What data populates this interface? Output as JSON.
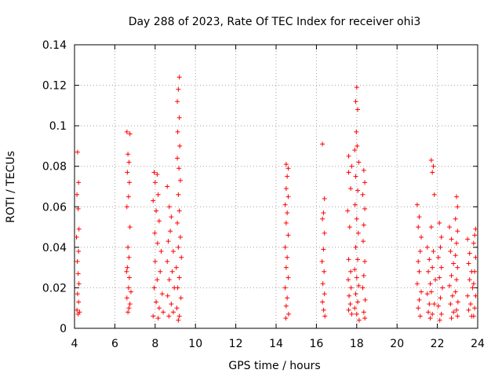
{
  "chart_data": {
    "type": "scatter",
    "title": "Day 288 of 2023, Rate Of TEC Index for receiver ohi3",
    "xlabel": "GPS time / hours",
    "ylabel": "ROTI / TECUs",
    "xlim": [
      4,
      24
    ],
    "ylim": [
      0,
      0.14
    ],
    "x_ticks": [
      "4",
      "6",
      "8",
      "10",
      "12",
      "14",
      "16",
      "18",
      "20",
      "22",
      "24"
    ],
    "y_ticks": [
      "0",
      "0.02",
      "0.04",
      "0.06",
      "0.08",
      "0.1",
      "0.12",
      "0.14"
    ],
    "grid": true,
    "marker": "+",
    "marker_color": "#ff0000",
    "series": [
      {
        "values": [
          [
            4.15,
            0.087
          ],
          [
            4.2,
            0.072
          ],
          [
            4.12,
            0.066
          ],
          [
            4.18,
            0.059
          ],
          [
            4.22,
            0.049
          ],
          [
            4.1,
            0.045
          ],
          [
            4.2,
            0.038
          ],
          [
            4.14,
            0.033
          ],
          [
            4.18,
            0.027
          ],
          [
            4.22,
            0.022
          ],
          [
            4.15,
            0.017
          ],
          [
            4.2,
            0.013
          ],
          [
            4.12,
            0.009
          ],
          [
            4.18,
            0.007
          ],
          [
            4.25,
            0.008
          ],
          [
            6.6,
            0.097
          ],
          [
            6.75,
            0.096
          ],
          [
            6.65,
            0.086
          ],
          [
            6.7,
            0.082
          ],
          [
            6.62,
            0.077
          ],
          [
            6.72,
            0.072
          ],
          [
            6.68,
            0.065
          ],
          [
            6.6,
            0.06
          ],
          [
            6.75,
            0.05
          ],
          [
            6.65,
            0.04
          ],
          [
            6.7,
            0.035
          ],
          [
            6.62,
            0.03
          ],
          [
            6.72,
            0.025
          ],
          [
            6.68,
            0.02
          ],
          [
            6.6,
            0.015
          ],
          [
            6.75,
            0.012
          ],
          [
            6.65,
            0.008
          ],
          [
            6.7,
            0.01
          ],
          [
            6.8,
            0.018
          ],
          [
            6.58,
            0.028
          ],
          [
            7.95,
            0.077
          ],
          [
            8.1,
            0.076
          ],
          [
            8.0,
            0.072
          ],
          [
            8.15,
            0.066
          ],
          [
            7.9,
            0.063
          ],
          [
            8.05,
            0.058
          ],
          [
            8.2,
            0.053
          ],
          [
            7.98,
            0.047
          ],
          [
            8.12,
            0.042
          ],
          [
            8.3,
            0.038
          ],
          [
            8.0,
            0.033
          ],
          [
            8.25,
            0.028
          ],
          [
            8.1,
            0.024
          ],
          [
            7.95,
            0.02
          ],
          [
            8.35,
            0.017
          ],
          [
            8.05,
            0.013
          ],
          [
            8.2,
            0.01
          ],
          [
            8.4,
            0.008
          ],
          [
            7.9,
            0.006
          ],
          [
            8.15,
            0.005
          ],
          [
            8.6,
            0.07
          ],
          [
            8.7,
            0.06
          ],
          [
            8.8,
            0.055
          ],
          [
            8.75,
            0.048
          ],
          [
            8.65,
            0.043
          ],
          [
            8.9,
            0.038
          ],
          [
            8.6,
            0.033
          ],
          [
            8.85,
            0.028
          ],
          [
            8.7,
            0.024
          ],
          [
            8.95,
            0.02
          ],
          [
            8.62,
            0.016
          ],
          [
            8.8,
            0.012
          ],
          [
            8.9,
            0.008
          ],
          [
            8.68,
            0.006
          ],
          [
            9.2,
            0.124
          ],
          [
            9.15,
            0.118
          ],
          [
            9.1,
            0.112
          ],
          [
            9.2,
            0.104
          ],
          [
            9.12,
            0.097
          ],
          [
            9.22,
            0.09
          ],
          [
            9.1,
            0.084
          ],
          [
            9.18,
            0.079
          ],
          [
            9.25,
            0.073
          ],
          [
            9.15,
            0.066
          ],
          [
            9.2,
            0.058
          ],
          [
            9.1,
            0.052
          ],
          [
            9.25,
            0.045
          ],
          [
            9.15,
            0.04
          ],
          [
            9.3,
            0.035
          ],
          [
            9.05,
            0.03
          ],
          [
            9.2,
            0.025
          ],
          [
            9.12,
            0.02
          ],
          [
            9.28,
            0.015
          ],
          [
            9.08,
            0.01
          ],
          [
            9.2,
            0.006
          ],
          [
            9.15,
            0.004
          ],
          [
            14.5,
            0.081
          ],
          [
            14.6,
            0.079
          ],
          [
            14.55,
            0.075
          ],
          [
            14.5,
            0.069
          ],
          [
            14.6,
            0.065
          ],
          [
            14.45,
            0.061
          ],
          [
            14.55,
            0.057
          ],
          [
            14.5,
            0.052
          ],
          [
            14.6,
            0.046
          ],
          [
            14.45,
            0.04
          ],
          [
            14.55,
            0.035
          ],
          [
            14.5,
            0.03
          ],
          [
            14.6,
            0.025
          ],
          [
            14.45,
            0.02
          ],
          [
            14.55,
            0.015
          ],
          [
            14.5,
            0.011
          ],
          [
            14.62,
            0.007
          ],
          [
            14.48,
            0.005
          ],
          [
            16.3,
            0.091
          ],
          [
            16.4,
            0.064
          ],
          [
            16.35,
            0.057
          ],
          [
            16.3,
            0.054
          ],
          [
            16.4,
            0.047
          ],
          [
            16.35,
            0.039
          ],
          [
            16.28,
            0.033
          ],
          [
            16.38,
            0.028
          ],
          [
            16.32,
            0.022
          ],
          [
            16.4,
            0.017
          ],
          [
            16.3,
            0.013
          ],
          [
            16.36,
            0.009
          ],
          [
            16.42,
            0.006
          ],
          [
            17.6,
            0.085
          ],
          [
            17.75,
            0.08
          ],
          [
            17.6,
            0.077
          ],
          [
            17.7,
            0.069
          ],
          [
            17.55,
            0.058
          ],
          [
            17.65,
            0.05
          ],
          [
            17.6,
            0.034
          ],
          [
            17.7,
            0.028
          ],
          [
            17.58,
            0.024
          ],
          [
            17.72,
            0.02
          ],
          [
            17.62,
            0.016
          ],
          [
            17.68,
            0.012
          ],
          [
            17.6,
            0.009
          ],
          [
            17.75,
            0.007
          ],
          [
            18.0,
            0.119
          ],
          [
            17.95,
            0.112
          ],
          [
            18.05,
            0.108
          ],
          [
            17.98,
            0.097
          ],
          [
            18.02,
            0.09
          ],
          [
            17.9,
            0.088
          ],
          [
            18.1,
            0.082
          ],
          [
            17.95,
            0.075
          ],
          [
            18.05,
            0.068
          ],
          [
            17.92,
            0.061
          ],
          [
            18.0,
            0.054
          ],
          [
            18.08,
            0.047
          ],
          [
            17.95,
            0.04
          ],
          [
            18.05,
            0.034
          ],
          [
            17.9,
            0.029
          ],
          [
            18.0,
            0.025
          ],
          [
            18.1,
            0.021
          ],
          [
            17.95,
            0.017
          ],
          [
            18.05,
            0.013
          ],
          [
            17.9,
            0.01
          ],
          [
            18.0,
            0.007
          ],
          [
            18.12,
            0.004
          ],
          [
            18.35,
            0.078
          ],
          [
            18.4,
            0.072
          ],
          [
            18.3,
            0.066
          ],
          [
            18.4,
            0.059
          ],
          [
            18.35,
            0.051
          ],
          [
            18.32,
            0.043
          ],
          [
            18.4,
            0.033
          ],
          [
            18.35,
            0.026
          ],
          [
            18.3,
            0.02
          ],
          [
            18.42,
            0.014
          ],
          [
            18.35,
            0.008
          ],
          [
            18.4,
            0.005
          ],
          [
            21.0,
            0.061
          ],
          [
            21.1,
            0.055
          ],
          [
            21.05,
            0.05
          ],
          [
            21.2,
            0.045
          ],
          [
            21.15,
            0.038
          ],
          [
            21.05,
            0.033
          ],
          [
            21.1,
            0.028
          ],
          [
            21.0,
            0.022
          ],
          [
            21.2,
            0.018
          ],
          [
            21.1,
            0.014
          ],
          [
            21.05,
            0.01
          ],
          [
            21.15,
            0.006
          ],
          [
            21.5,
            0.04
          ],
          [
            21.6,
            0.034
          ],
          [
            21.55,
            0.028
          ],
          [
            21.65,
            0.022
          ],
          [
            21.5,
            0.017
          ],
          [
            21.6,
            0.012
          ],
          [
            21.55,
            0.008
          ],
          [
            21.65,
            0.005
          ],
          [
            21.7,
            0.083
          ],
          [
            21.8,
            0.08
          ],
          [
            21.75,
            0.077
          ],
          [
            21.85,
            0.066
          ],
          [
            21.7,
            0.05
          ],
          [
            21.8,
            0.038
          ],
          [
            21.75,
            0.03
          ],
          [
            21.9,
            0.024
          ],
          [
            21.7,
            0.018
          ],
          [
            21.85,
            0.012
          ],
          [
            21.75,
            0.007
          ],
          [
            22.1,
            0.052
          ],
          [
            22.2,
            0.045
          ],
          [
            22.15,
            0.04
          ],
          [
            22.05,
            0.035
          ],
          [
            22.2,
            0.03
          ],
          [
            22.1,
            0.025
          ],
          [
            22.25,
            0.02
          ],
          [
            22.15,
            0.015
          ],
          [
            22.05,
            0.011
          ],
          [
            22.2,
            0.007
          ],
          [
            22.12,
            0.004
          ],
          [
            22.6,
            0.05
          ],
          [
            22.7,
            0.044
          ],
          [
            22.65,
            0.038
          ],
          [
            22.8,
            0.032
          ],
          [
            22.7,
            0.026
          ],
          [
            22.6,
            0.021
          ],
          [
            22.75,
            0.016
          ],
          [
            22.65,
            0.012
          ],
          [
            22.8,
            0.008
          ],
          [
            22.7,
            0.005
          ],
          [
            22.95,
            0.065
          ],
          [
            23.0,
            0.06
          ],
          [
            22.9,
            0.054
          ],
          [
            23.0,
            0.048
          ],
          [
            22.95,
            0.042
          ],
          [
            22.9,
            0.036
          ],
          [
            23.0,
            0.03
          ],
          [
            22.95,
            0.024
          ],
          [
            22.9,
            0.018
          ],
          [
            23.02,
            0.013
          ],
          [
            22.95,
            0.009
          ],
          [
            23.0,
            0.006
          ],
          [
            23.5,
            0.044
          ],
          [
            23.6,
            0.037
          ],
          [
            23.55,
            0.032
          ],
          [
            23.7,
            0.028
          ],
          [
            23.6,
            0.024
          ],
          [
            23.75,
            0.02
          ],
          [
            23.5,
            0.016
          ],
          [
            23.65,
            0.012
          ],
          [
            23.55,
            0.009
          ],
          [
            23.7,
            0.006
          ],
          [
            23.9,
            0.049
          ],
          [
            23.85,
            0.046
          ],
          [
            23.8,
            0.042
          ],
          [
            23.9,
            0.035
          ],
          [
            23.85,
            0.028
          ],
          [
            23.8,
            0.022
          ],
          [
            23.9,
            0.016
          ],
          [
            23.85,
            0.01
          ],
          [
            23.8,
            0.006
          ]
        ]
      }
    ]
  }
}
